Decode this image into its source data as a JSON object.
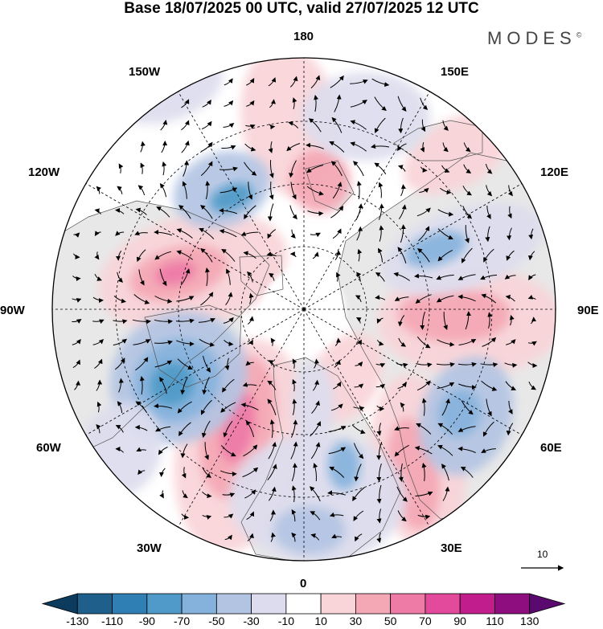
{
  "title": "Base 18/07/2025 00 UTC, valid 27/07/2025 12 UTC",
  "logo": "MODES",
  "logo_mark": "©",
  "longitude_labels": {
    "lon_180": "180",
    "lon_150e": "150E",
    "lon_120e": "120E",
    "lon_90e": "90E",
    "lon_60e": "60E",
    "lon_30e": "30E",
    "lon_0": "0",
    "lon_30w": "30W",
    "lon_60w": "60W",
    "lon_90w": "90W",
    "lon_120w": "120W",
    "lon_150w": "150W"
  },
  "reference_vector_label": "10",
  "colorbar": {
    "labels": [
      "-130",
      "-110",
      "-90",
      "-70",
      "-50",
      "-30",
      "-10",
      "10",
      "30",
      "50",
      "70",
      "90",
      "110",
      "130"
    ],
    "colors": [
      "#0d3b5e",
      "#1f5f8b",
      "#2f7fb4",
      "#4f9ac8",
      "#85b2dc",
      "#b3c4e3",
      "#dcdcee",
      "#ffffff",
      "#f9d4d8",
      "#f4a7b4",
      "#ee7aa6",
      "#e34a9b",
      "#c21d8c",
      "#8e0d7f",
      "#5a0a6e"
    ]
  },
  "colors": {
    "land": "#e8e8e8",
    "ocean": "#ffffff",
    "outline": "#000000"
  }
}
